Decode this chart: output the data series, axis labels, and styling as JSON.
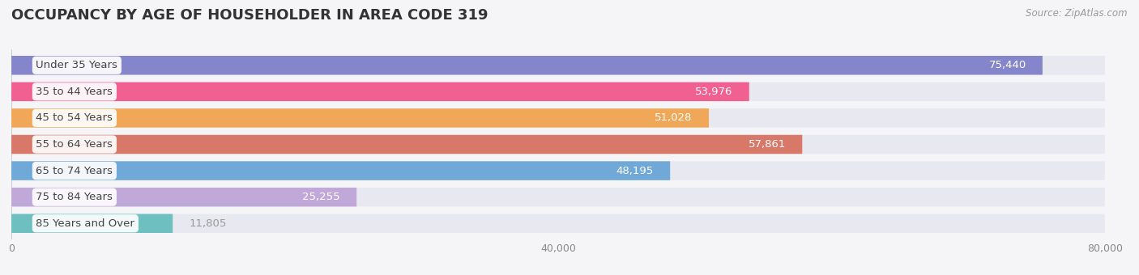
{
  "title": "OCCUPANCY BY AGE OF HOUSEHOLDER IN AREA CODE 319",
  "source": "Source: ZipAtlas.com",
  "categories": [
    "Under 35 Years",
    "35 to 44 Years",
    "45 to 54 Years",
    "55 to 64 Years",
    "65 to 74 Years",
    "75 to 84 Years",
    "85 Years and Over"
  ],
  "values": [
    75440,
    53976,
    51028,
    57861,
    48195,
    25255,
    11805
  ],
  "bar_colors": [
    "#8585cc",
    "#f06090",
    "#f0a858",
    "#d87868",
    "#70a8d8",
    "#c0a8d8",
    "#6ec0c0"
  ],
  "bar_bg_color": "#e8e8f0",
  "xlim": [
    0,
    80000
  ],
  "xticks": [
    0,
    40000,
    80000
  ],
  "xtick_labels": [
    "0",
    "40,000",
    "80,000"
  ],
  "title_fontsize": 13,
  "label_fontsize": 9.5,
  "value_fontsize": 9.5,
  "bg_color": "#f5f5f8",
  "bar_height": 0.72,
  "value_label_color_inside": "#ffffff",
  "value_label_color_outside": "#999999",
  "value_threshold": 15000
}
